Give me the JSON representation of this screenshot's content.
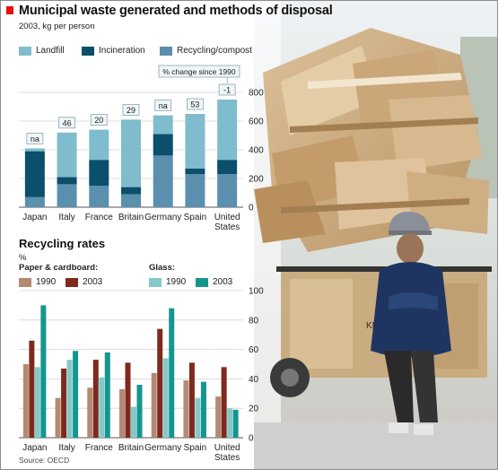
{
  "header": {
    "title": "Municipal waste generated and methods of disposal",
    "subtitle": "2003, kg per person"
  },
  "waste_legend": [
    {
      "label": "Landfill",
      "color": "#7fbcce"
    },
    {
      "label": "Incineration",
      "color": "#0b4f6a"
    },
    {
      "label": "Recycling/compost",
      "color": "#5b8fae"
    }
  ],
  "pct_change_label": "% change since 1990",
  "recycling": {
    "title": "Recycling rates",
    "unit": "%",
    "group1": "Paper & cardboard:",
    "group2": "Glass:",
    "legend": [
      {
        "label": "1990",
        "color": "#b58a72"
      },
      {
        "label": "2003",
        "color": "#7e2a1c"
      },
      {
        "label": "1990",
        "color": "#84c9c9"
      },
      {
        "label": "2003",
        "color": "#14968e"
      }
    ]
  },
  "source": "Source: OECD",
  "photo": {
    "caption": "KINGH"
  },
  "chart_data": [
    {
      "type": "bar",
      "stacked": true,
      "title": "Municipal waste generated and methods of disposal",
      "subtitle": "2003, kg per person",
      "categories": [
        "Japan",
        "Italy",
        "France",
        "Britain",
        "Germany",
        "Spain",
        "United States"
      ],
      "series": [
        {
          "name": "Recycling/compost",
          "color": "#5b8fae",
          "values": [
            70,
            160,
            150,
            90,
            360,
            230,
            230
          ]
        },
        {
          "name": "Incineration",
          "color": "#0b4f6a",
          "values": [
            320,
            50,
            180,
            50,
            150,
            40,
            100
          ]
        },
        {
          "name": "Landfill",
          "color": "#7fbcce",
          "values": [
            20,
            310,
            210,
            470,
            130,
            380,
            420
          ]
        }
      ],
      "annotations": [
        "na",
        "46",
        "20",
        "29",
        "na",
        "53",
        "-1"
      ],
      "annotation_title": "% change since 1990",
      "ylim": [
        0,
        800
      ],
      "yticks": [
        0,
        200,
        400,
        600,
        800
      ],
      "grid": true,
      "axis_side": "right"
    },
    {
      "type": "bar",
      "title": "Recycling rates",
      "ylabel": "%",
      "categories": [
        "Japan",
        "Italy",
        "France",
        "Britain",
        "Germany",
        "Spain",
        "United States"
      ],
      "groups": [
        "Paper & cardboard:",
        "Glass:"
      ],
      "series": [
        {
          "name": "1990",
          "group": "Paper & cardboard:",
          "color": "#b58a72",
          "values": [
            50,
            27,
            34,
            33,
            44,
            39,
            28
          ]
        },
        {
          "name": "2003",
          "group": "Paper & cardboard:",
          "color": "#7e2a1c",
          "values": [
            66,
            47,
            53,
            51,
            74,
            51,
            48
          ]
        },
        {
          "name": "1990",
          "group": "Glass:",
          "color": "#84c9c9",
          "values": [
            48,
            53,
            41,
            21,
            54,
            27,
            20
          ]
        },
        {
          "name": "2003",
          "group": "Glass:",
          "color": "#14968e",
          "values": [
            90,
            59,
            58,
            36,
            88,
            38,
            19
          ]
        }
      ],
      "ylim": [
        0,
        100
      ],
      "yticks": [
        0,
        20,
        40,
        60,
        80,
        100
      ],
      "grid": true,
      "axis_side": "right"
    }
  ]
}
